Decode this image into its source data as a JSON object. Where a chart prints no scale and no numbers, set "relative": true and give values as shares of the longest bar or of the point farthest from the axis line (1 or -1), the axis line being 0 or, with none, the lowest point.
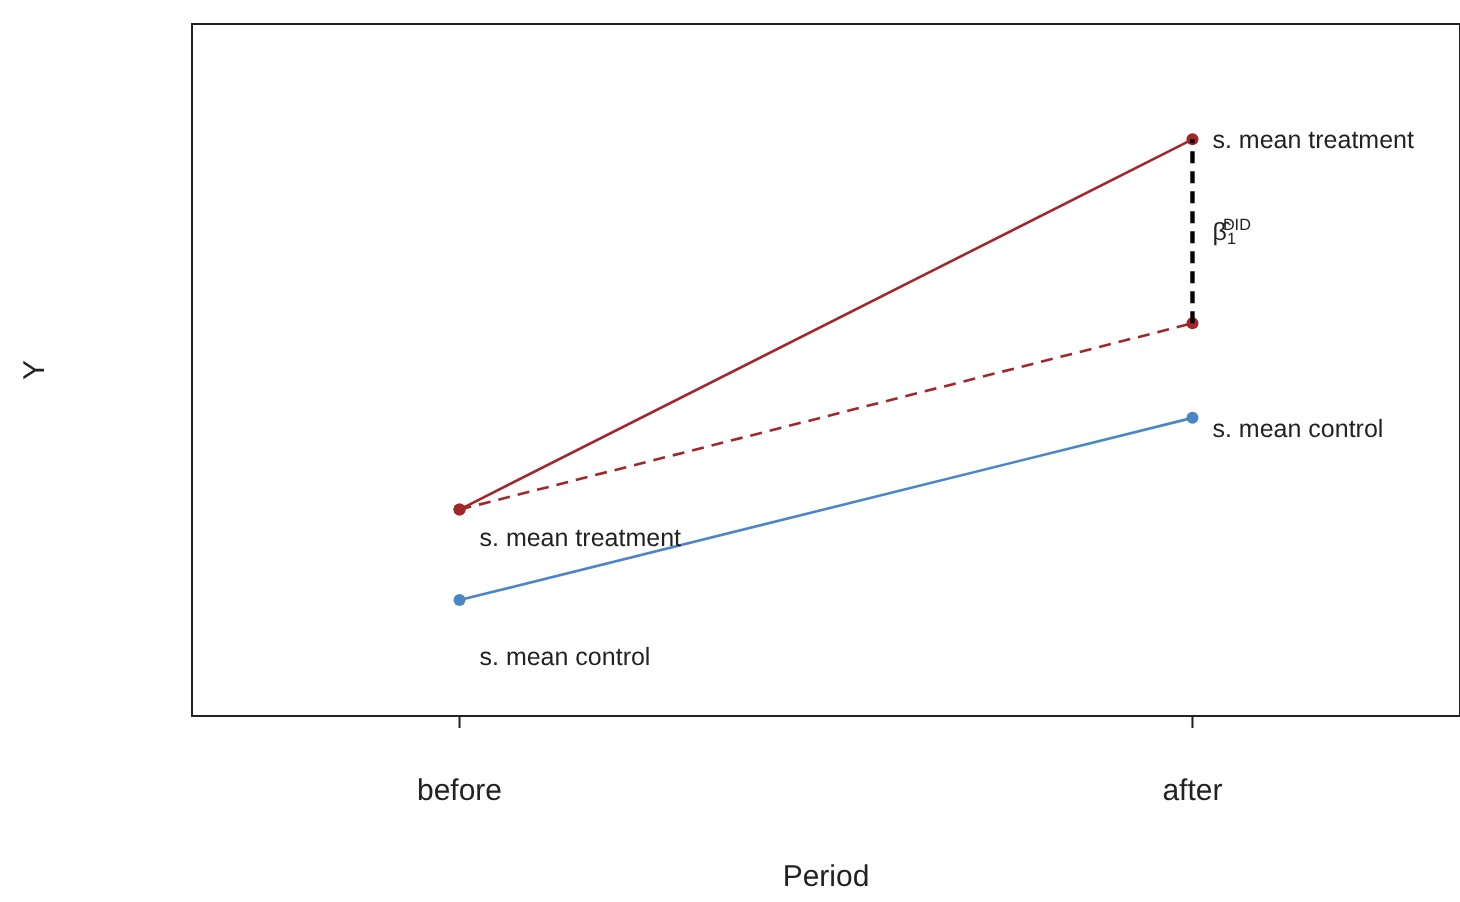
{
  "chart_data": {
    "type": "line",
    "relative": true,
    "xlabel": "Period",
    "ylabel": "Y",
    "categories": [
      "before",
      "after"
    ],
    "marker": "circle",
    "series": [
      {
        "color": "#a0262a",
        "values": [
          0.358,
          1
        ],
        "line_style": "solid"
      },
      {
        "color": "#a0262a",
        "values": [
          0.358,
          0.681
        ],
        "line_style": "dashed"
      },
      {
        "color": "#4a86c4",
        "values": [
          0.201,
          0.517
        ],
        "line_style": "solid"
      },
      {
        "color": "#000000",
        "x": [
          "after",
          "after"
        ],
        "values": [
          0.681,
          1
        ],
        "line_style": "dashed",
        "marker": "none"
      }
    ],
    "annotations": [
      {
        "text": "s. mean treatment",
        "x": "before",
        "y": 0.358
      },
      {
        "text": "s. mean control",
        "x": "before",
        "y": 0.201
      },
      {
        "text": "s. mean treatment",
        "x": "after",
        "y": 1
      },
      {
        "text": "s. mean control",
        "x": "after",
        "y": 0.517
      },
      {
        "text": "β̂$_{1}$$^{DID}$",
        "x": "after",
        "y": 0.84
      }
    ]
  }
}
